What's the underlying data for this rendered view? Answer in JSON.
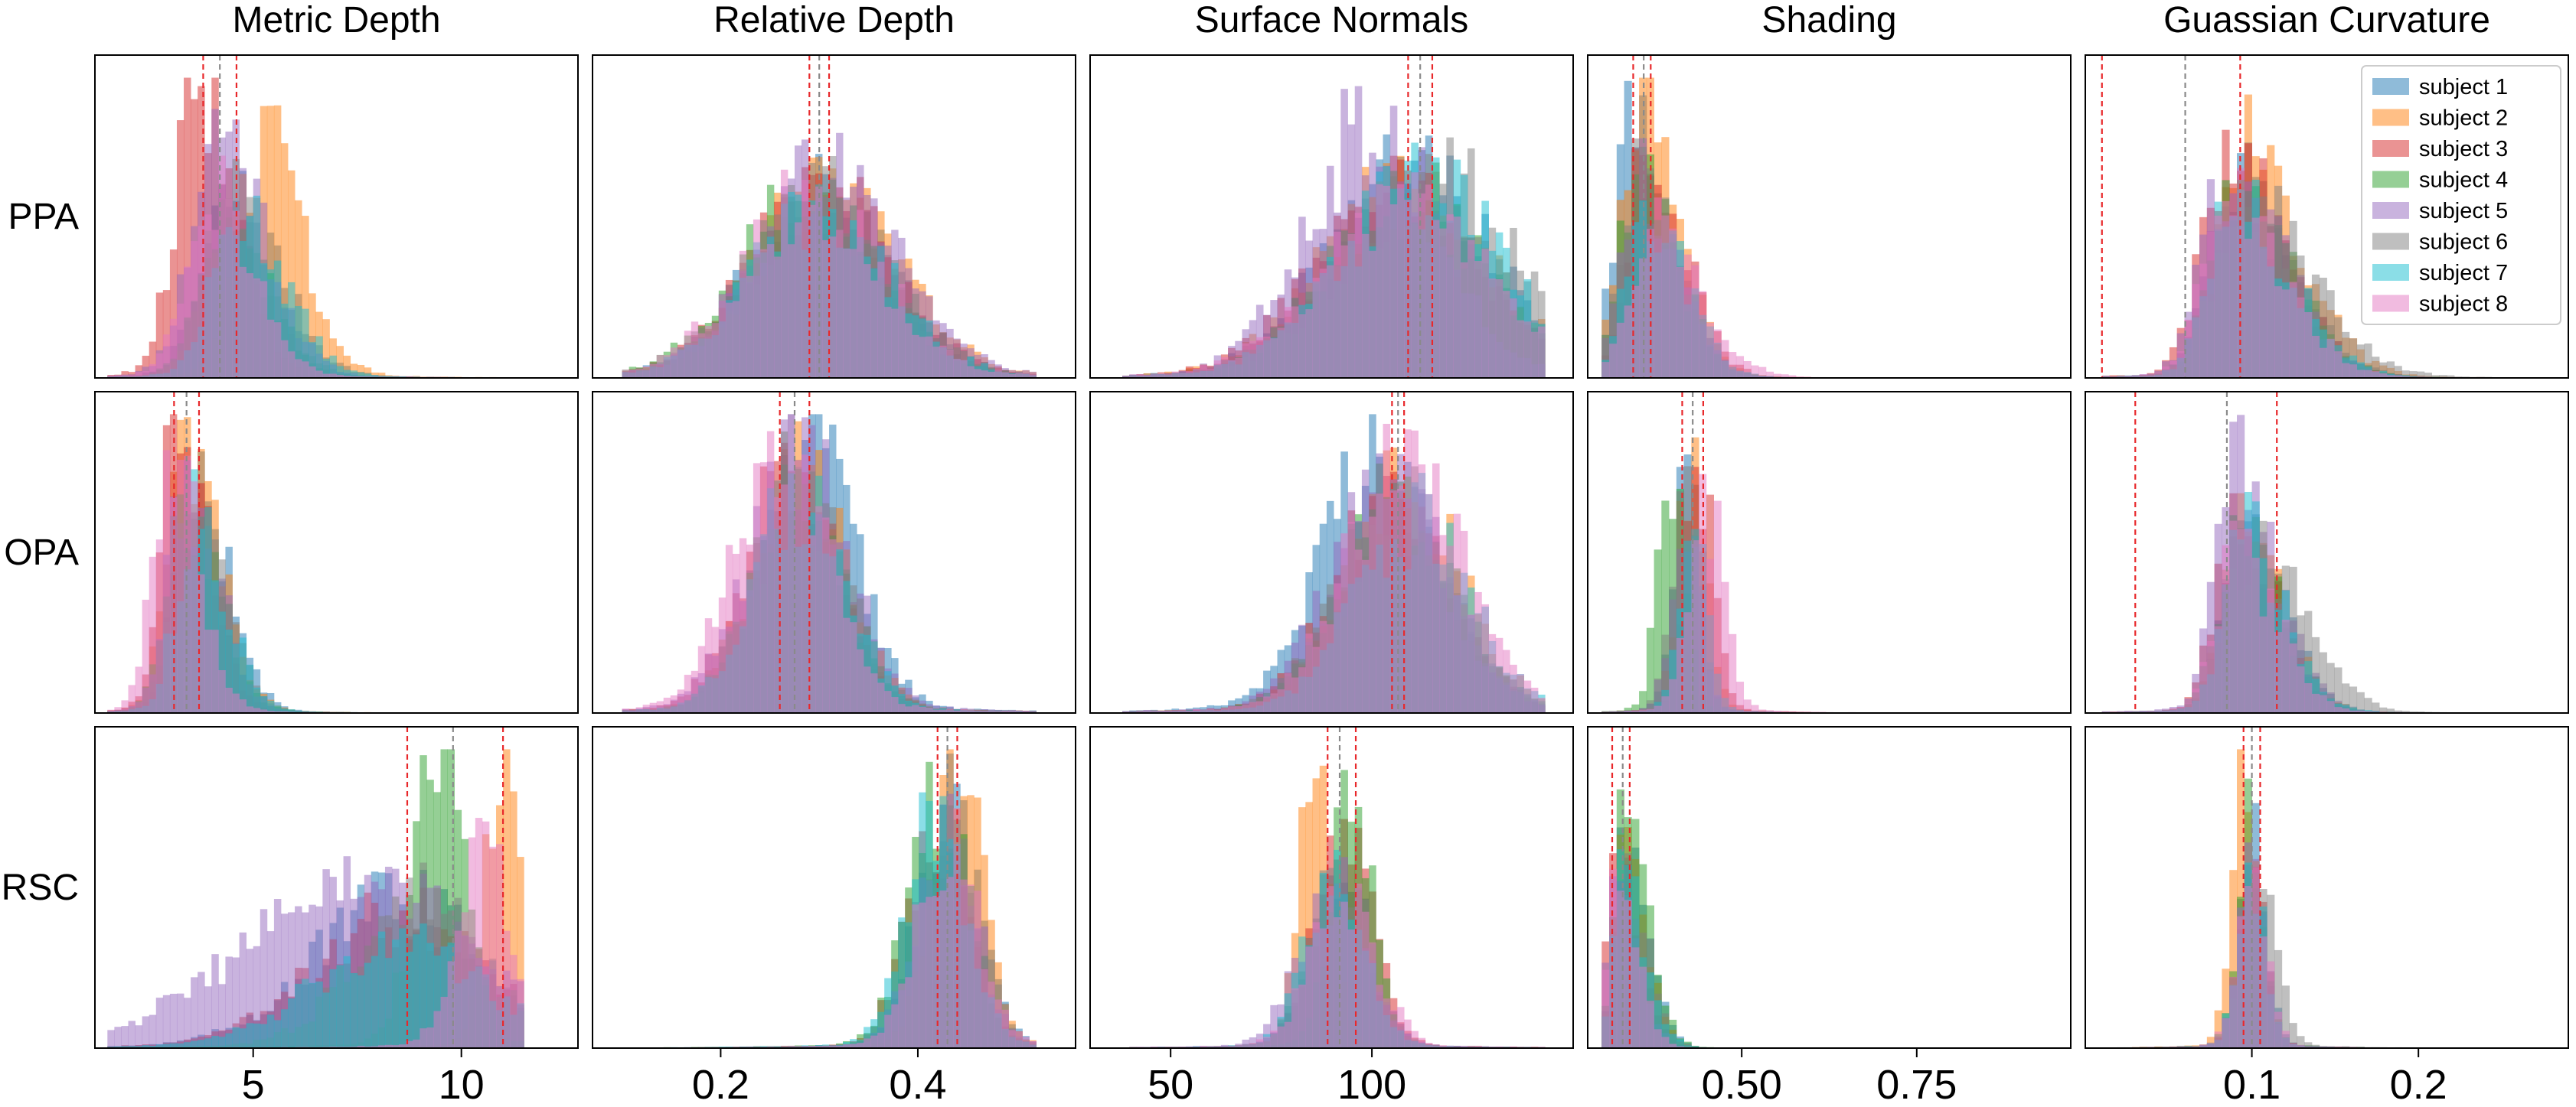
{
  "figure": {
    "columns": [
      "Metric Depth",
      "Relative Depth",
      "Surface Normals",
      "Shading",
      "Guassian Curvature"
    ],
    "rows": [
      "PPA",
      "OPA",
      "RSC"
    ]
  },
  "legend": {
    "placement": "top-right",
    "entries": [
      {
        "label": "subject 1",
        "color": "#1f77b4"
      },
      {
        "label": "subject 2",
        "color": "#ff7f0e"
      },
      {
        "label": "subject 3",
        "color": "#d62728"
      },
      {
        "label": "subject 4",
        "color": "#2ca02c"
      },
      {
        "label": "subject 5",
        "color": "#9467bd"
      },
      {
        "label": "subject 6",
        "color": "#7f7f7f"
      },
      {
        "label": "subject 7",
        "color": "#17becf"
      },
      {
        "label": "subject 8",
        "color": "#e377c2"
      }
    ]
  },
  "chart_data": [
    {
      "type": "histogram",
      "title": "Metric Depth",
      "xlim": [
        1.2,
        12.8
      ],
      "xticks": [
        5,
        10
      ],
      "panels": [
        {
          "row": "PPA",
          "range": [
            1.5,
            11.5
          ],
          "peaks": [
            {
              "c": 4.5,
              "w": 0.7,
              "h": 0.6,
              "sk": 1.6
            },
            {
              "c": 5.2,
              "w": 0.6,
              "h": 0.8,
              "sk": 1.6
            },
            {
              "c": 3.7,
              "w": 0.55,
              "h": 1.0,
              "sk": 1.6
            },
            {
              "c": 4.3,
              "w": 0.6,
              "h": 0.55,
              "sk": 1.6
            },
            {
              "c": 4.2,
              "w": 0.65,
              "h": 0.85,
              "sk": 1.6
            },
            {
              "c": 4.4,
              "w": 0.6,
              "h": 0.6,
              "sk": 1.6
            },
            {
              "c": 4.7,
              "w": 0.65,
              "h": 0.55,
              "sk": 1.6
            },
            {
              "c": 4.0,
              "w": 0.6,
              "h": 0.65,
              "sk": 1.6
            }
          ],
          "vlines_red": [
            3.8,
            4.6
          ],
          "vline_gray": 4.2
        },
        {
          "row": "OPA",
          "range": [
            1.5,
            11.5
          ],
          "peaks": [
            {
              "c": 3.6,
              "w": 0.45,
              "h": 0.8,
              "sk": 1.7
            },
            {
              "c": 3.4,
              "w": 0.45,
              "h": 0.9,
              "sk": 1.7
            },
            {
              "c": 3.2,
              "w": 0.4,
              "h": 1.0,
              "sk": 1.7
            },
            {
              "c": 3.4,
              "w": 0.45,
              "h": 0.7,
              "sk": 1.7
            },
            {
              "c": 3.4,
              "w": 0.45,
              "h": 0.75,
              "sk": 1.7
            },
            {
              "c": 3.5,
              "w": 0.45,
              "h": 0.7,
              "sk": 1.7
            },
            {
              "c": 3.6,
              "w": 0.45,
              "h": 0.65,
              "sk": 1.7
            },
            {
              "c": 3.0,
              "w": 0.4,
              "h": 0.9,
              "sk": 1.7
            }
          ],
          "vlines_red": [
            3.1,
            3.7
          ],
          "vline_gray": 3.4
        },
        {
          "row": "RSC",
          "range": [
            1.5,
            11.5
          ],
          "peaks": [
            {
              "c": 8.5,
              "w": 2.0,
              "h": 0.5
            },
            {
              "c": 11.0,
              "w": 0.4,
              "h": 1.0
            },
            {
              "c": 8.5,
              "w": 2.0,
              "h": 0.45
            },
            {
              "c": 9.5,
              "w": 0.6,
              "h": 1.0
            },
            {
              "c": 7.5,
              "w": 2.8,
              "h": 0.55
            },
            {
              "c": 9.0,
              "w": 1.5,
              "h": 0.5
            },
            {
              "c": 8.5,
              "w": 2.0,
              "h": 0.35
            },
            {
              "c": 10.5,
              "w": 0.6,
              "h": 0.7
            }
          ],
          "vlines_red": [
            8.7,
            11.0
          ],
          "vline_gray": 9.8
        }
      ]
    },
    {
      "type": "histogram",
      "title": "Relative Depth",
      "xlim": [
        0.07,
        0.56
      ],
      "xticks": [
        0.2,
        0.4
      ],
      "panels": [
        {
          "row": "PPA",
          "range": [
            0.1,
            0.52
          ],
          "peaks": [
            {
              "c": 0.3,
              "w": 0.07,
              "h": 0.6
            },
            {
              "c": 0.31,
              "w": 0.07,
              "h": 0.65
            },
            {
              "c": 0.3,
              "w": 0.07,
              "h": 0.65
            },
            {
              "c": 0.29,
              "w": 0.07,
              "h": 0.6
            },
            {
              "c": 0.31,
              "w": 0.07,
              "h": 0.7
            },
            {
              "c": 0.3,
              "w": 0.07,
              "h": 0.6
            },
            {
              "c": 0.3,
              "w": 0.07,
              "h": 0.55
            },
            {
              "c": 0.29,
              "w": 0.07,
              "h": 0.6
            }
          ],
          "vlines_red": [
            0.29,
            0.31
          ],
          "vline_gray": 0.3
        },
        {
          "row": "OPA",
          "range": [
            0.1,
            0.52
          ],
          "peaks": [
            {
              "c": 0.29,
              "w": 0.045,
              "h": 0.95
            },
            {
              "c": 0.28,
              "w": 0.045,
              "h": 0.85
            },
            {
              "c": 0.27,
              "w": 0.045,
              "h": 0.8
            },
            {
              "c": 0.28,
              "w": 0.045,
              "h": 0.75
            },
            {
              "c": 0.28,
              "w": 0.05,
              "h": 0.85
            },
            {
              "c": 0.28,
              "w": 0.045,
              "h": 0.8
            },
            {
              "c": 0.28,
              "w": 0.045,
              "h": 0.75
            },
            {
              "c": 0.26,
              "w": 0.045,
              "h": 0.95
            }
          ],
          "vlines_red": [
            0.26,
            0.29
          ],
          "vline_gray": 0.275
        },
        {
          "row": "RSC",
          "range": [
            0.1,
            0.52
          ],
          "peaks": [
            {
              "c": 0.43,
              "w": 0.03,
              "h": 0.8
            },
            {
              "c": 0.44,
              "w": 0.025,
              "h": 1.0
            },
            {
              "c": 0.42,
              "w": 0.03,
              "h": 0.75
            },
            {
              "c": 0.42,
              "w": 0.03,
              "h": 0.85
            },
            {
              "c": 0.43,
              "w": 0.03,
              "h": 0.7
            },
            {
              "c": 0.43,
              "w": 0.03,
              "h": 0.75
            },
            {
              "c": 0.42,
              "w": 0.03,
              "h": 0.8
            },
            {
              "c": 0.43,
              "w": 0.03,
              "h": 0.7
            }
          ],
          "vlines_red": [
            0.42,
            0.44
          ],
          "vline_gray": 0.43
        }
      ]
    },
    {
      "type": "histogram",
      "title": "Surface Normals",
      "xlim": [
        30,
        150
      ],
      "xticks": [
        50,
        100
      ],
      "panels": [
        {
          "row": "PPA",
          "range": [
            38,
            143
          ],
          "peaks": [
            {
              "c": 110,
              "w": 20,
              "h": 0.7
            },
            {
              "c": 108,
              "w": 20,
              "h": 0.65
            },
            {
              "c": 106,
              "w": 20,
              "h": 0.6
            },
            {
              "c": 110,
              "w": 20,
              "h": 0.6
            },
            {
              "c": 100,
              "w": 16,
              "h": 0.85
            },
            {
              "c": 115,
              "w": 20,
              "h": 0.7
            },
            {
              "c": 112,
              "w": 20,
              "h": 0.65
            },
            {
              "c": 108,
              "w": 20,
              "h": 0.6
            }
          ],
          "vlines_red": [
            109,
            115
          ],
          "vline_gray": 112
        },
        {
          "row": "OPA",
          "range": [
            38,
            143
          ],
          "peaks": [
            {
              "c": 102,
              "w": 14,
              "h": 0.9
            },
            {
              "c": 108,
              "w": 14,
              "h": 0.75
            },
            {
              "c": 105,
              "w": 14,
              "h": 0.7
            },
            {
              "c": 106,
              "w": 14,
              "h": 0.7
            },
            {
              "c": 104,
              "w": 14,
              "h": 0.75
            },
            {
              "c": 106,
              "w": 14,
              "h": 0.7
            },
            {
              "c": 110,
              "w": 14,
              "h": 0.65
            },
            {
              "c": 108,
              "w": 14,
              "h": 0.85
            }
          ],
          "vlines_red": [
            105,
            108
          ],
          "vline_gray": 106.5
        },
        {
          "row": "RSC",
          "range": [
            38,
            143
          ],
          "peaks": [
            {
              "c": 92,
              "w": 7,
              "h": 0.6
            },
            {
              "c": 86,
              "w": 4,
              "h": 1.0
            },
            {
              "c": 93,
              "w": 7,
              "h": 0.7
            },
            {
              "c": 95,
              "w": 5,
              "h": 0.85
            },
            {
              "c": 90,
              "w": 8,
              "h": 0.55
            },
            {
              "c": 92,
              "w": 7,
              "h": 0.6
            },
            {
              "c": 91,
              "w": 7,
              "h": 0.6
            },
            {
              "c": 93,
              "w": 8,
              "h": 0.5
            }
          ],
          "vlines_red": [
            89,
            96
          ],
          "vline_gray": 92
        }
      ]
    },
    {
      "type": "histogram",
      "title": "Shading",
      "xlim": [
        0.28,
        0.97
      ],
      "xticks": [
        0.5,
        0.75
      ],
      "panels": [
        {
          "row": "PPA",
          "range": [
            0.3,
            0.94
          ],
          "peaks": [
            {
              "c": 0.34,
              "w": 0.025,
              "h": 0.8,
              "sk": 2.2
            },
            {
              "c": 0.35,
              "w": 0.025,
              "h": 0.95,
              "sk": 2.2
            },
            {
              "c": 0.36,
              "w": 0.025,
              "h": 0.75,
              "sk": 2.2
            },
            {
              "c": 0.35,
              "w": 0.025,
              "h": 0.7,
              "sk": 2.2
            },
            {
              "c": 0.35,
              "w": 0.025,
              "h": 0.65,
              "sk": 2.2
            },
            {
              "c": 0.35,
              "w": 0.025,
              "h": 0.7,
              "sk": 2.2
            },
            {
              "c": 0.36,
              "w": 0.025,
              "h": 0.6,
              "sk": 2.2
            },
            {
              "c": 0.37,
              "w": 0.03,
              "h": 0.5,
              "sk": 2.2
            }
          ],
          "vlines_red": [
            0.345,
            0.37
          ],
          "vline_gray": 0.36
        },
        {
          "row": "OPA",
          "range": [
            0.3,
            0.94
          ],
          "peaks": [
            {
              "c": 0.42,
              "w": 0.018,
              "h": 0.9
            },
            {
              "c": 0.43,
              "w": 0.02,
              "h": 0.85
            },
            {
              "c": 0.44,
              "w": 0.02,
              "h": 0.8
            },
            {
              "c": 0.4,
              "w": 0.02,
              "h": 0.75
            },
            {
              "c": 0.42,
              "w": 0.02,
              "h": 0.65
            },
            {
              "c": 0.42,
              "w": 0.02,
              "h": 0.7
            },
            {
              "c": 0.43,
              "w": 0.02,
              "h": 0.6
            },
            {
              "c": 0.45,
              "w": 0.025,
              "h": 0.7
            }
          ],
          "vlines_red": [
            0.415,
            0.445
          ],
          "vline_gray": 0.43
        },
        {
          "row": "RSC",
          "range": [
            0.3,
            0.94
          ],
          "peaks": [
            {
              "c": 0.33,
              "w": 0.013,
              "h": 0.7,
              "sk": 2.5
            },
            {
              "c": 0.33,
              "w": 0.012,
              "h": 0.8,
              "sk": 2.5
            },
            {
              "c": 0.32,
              "w": 0.012,
              "h": 0.75,
              "sk": 2.5
            },
            {
              "c": 0.33,
              "w": 0.013,
              "h": 0.8,
              "sk": 2.5
            },
            {
              "c": 0.32,
              "w": 0.012,
              "h": 0.6,
              "sk": 2.5
            },
            {
              "c": 0.33,
              "w": 0.013,
              "h": 0.65,
              "sk": 2.5
            },
            {
              "c": 0.33,
              "w": 0.013,
              "h": 0.6,
              "sk": 2.5
            },
            {
              "c": 0.32,
              "w": 0.012,
              "h": 0.55,
              "sk": 2.5
            }
          ],
          "vlines_red": [
            0.315,
            0.34
          ],
          "vline_gray": 0.33
        }
      ]
    },
    {
      "type": "histogram",
      "title": "Guassian Curvature",
      "xlim": [
        0.0,
        0.29
      ],
      "xticks": [
        0.1,
        0.2
      ],
      "panels": [
        {
          "row": "PPA",
          "range": [
            0.01,
            0.28
          ],
          "peaks": [
            {
              "c": 0.09,
              "w": 0.015,
              "h": 0.65,
              "sk": 2.2
            },
            {
              "c": 0.095,
              "w": 0.015,
              "h": 0.8,
              "sk": 2.2
            },
            {
              "c": 0.085,
              "w": 0.015,
              "h": 0.75,
              "sk": 2.2
            },
            {
              "c": 0.09,
              "w": 0.015,
              "h": 0.6,
              "sk": 2.2
            },
            {
              "c": 0.085,
              "w": 0.015,
              "h": 0.7,
              "sk": 2.2
            },
            {
              "c": 0.095,
              "w": 0.018,
              "h": 0.6,
              "sk": 2.2
            },
            {
              "c": 0.09,
              "w": 0.015,
              "h": 0.6,
              "sk": 2.2
            },
            {
              "c": 0.085,
              "w": 0.015,
              "h": 0.6,
              "sk": 2.2
            }
          ],
          "vlines_red": [
            0.01,
            0.093
          ],
          "vline_gray": 0.06
        },
        {
          "row": "OPA",
          "range": [
            0.01,
            0.28
          ],
          "peaks": [
            {
              "c": 0.095,
              "w": 0.012,
              "h": 0.6,
              "sk": 2.0
            },
            {
              "c": 0.095,
              "w": 0.012,
              "h": 0.6,
              "sk": 2.0
            },
            {
              "c": 0.09,
              "w": 0.012,
              "h": 0.65,
              "sk": 2.0
            },
            {
              "c": 0.092,
              "w": 0.012,
              "h": 0.6,
              "sk": 2.0
            },
            {
              "c": 0.09,
              "w": 0.012,
              "h": 0.85,
              "sk": 2.0
            },
            {
              "c": 0.1,
              "w": 0.015,
              "h": 0.55,
              "sk": 2.0
            },
            {
              "c": 0.095,
              "w": 0.012,
              "h": 0.6,
              "sk": 2.0
            },
            {
              "c": 0.09,
              "w": 0.012,
              "h": 0.55,
              "sk": 2.0
            }
          ],
          "vlines_red": [
            0.03,
            0.115
          ],
          "vline_gray": 0.085
        },
        {
          "row": "RSC",
          "range": [
            0.01,
            0.28
          ],
          "peaks": [
            {
              "c": 0.1,
              "w": 0.008,
              "h": 0.7
            },
            {
              "c": 0.095,
              "w": 0.007,
              "h": 1.0
            },
            {
              "c": 0.1,
              "w": 0.008,
              "h": 0.7
            },
            {
              "c": 0.1,
              "w": 0.008,
              "h": 0.75
            },
            {
              "c": 0.1,
              "w": 0.008,
              "h": 0.6
            },
            {
              "c": 0.105,
              "w": 0.01,
              "h": 0.65
            },
            {
              "c": 0.1,
              "w": 0.008,
              "h": 0.6
            },
            {
              "c": 0.1,
              "w": 0.009,
              "h": 0.55
            }
          ],
          "vlines_red": [
            0.095,
            0.105
          ],
          "vline_gray": 0.1
        }
      ]
    }
  ]
}
